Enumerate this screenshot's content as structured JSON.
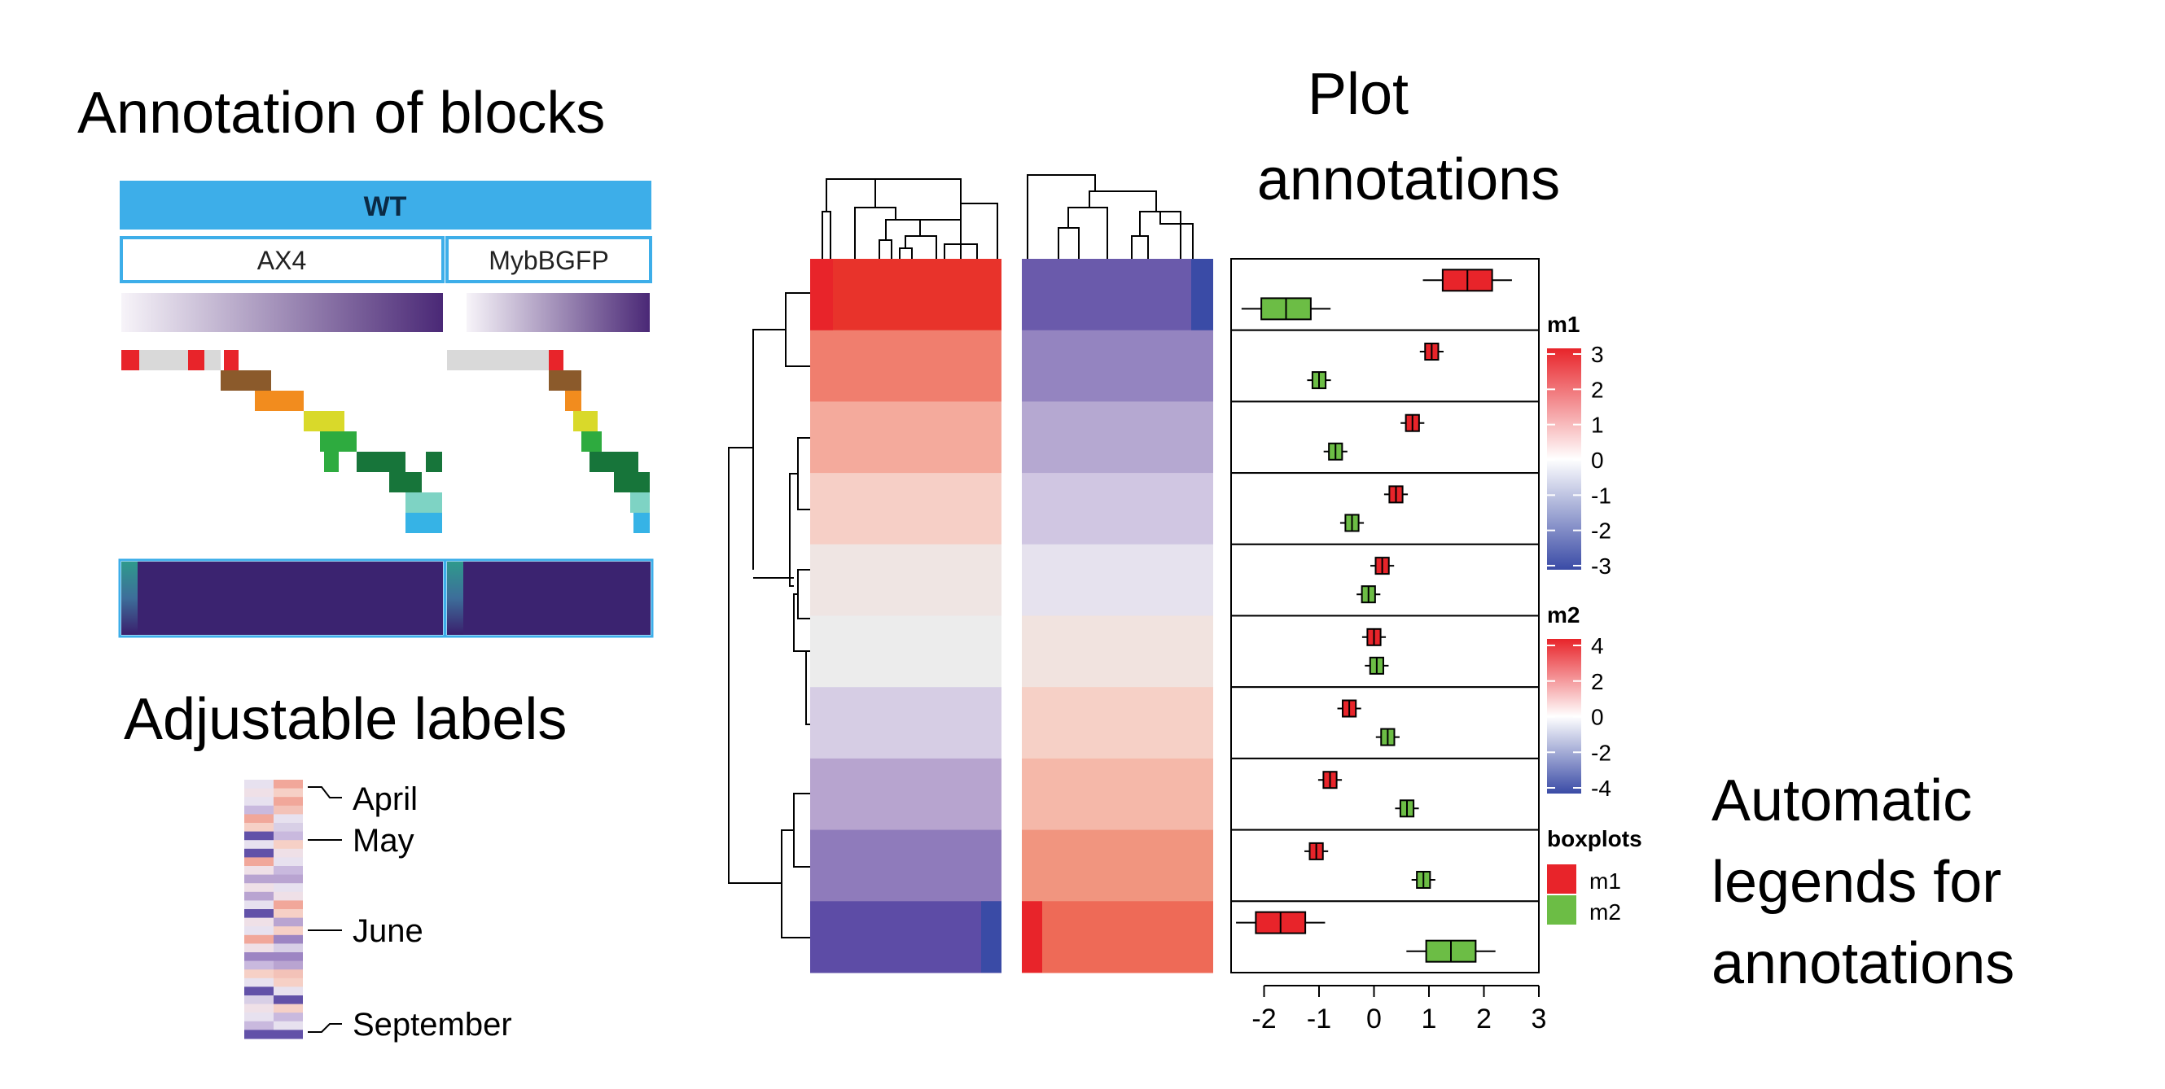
{
  "titles": {
    "annotation_of_blocks": "Annotation of blocks",
    "adjustable_labels": "Adjustable labels",
    "plot_annotations_line1": "Plot",
    "plot_annotations_line2": "annotations",
    "automatic_line1": "Automatic",
    "automatic_line2": "legends for",
    "automatic_line3": "annotations"
  },
  "blocks_panel": {
    "top_label": "WT",
    "groups": [
      "AX4",
      "MybBGFP"
    ],
    "colors": {
      "header": "#3daee9",
      "header_border": "#2196c8",
      "gradient_start": "#f6f2f8",
      "gradient_end": "#4b2a78",
      "viridis_dark": "#3b1f6e",
      "viridis_mid": "#2d5c8a",
      "viridis_teal": "#21a08c"
    },
    "staircase_colors": [
      "#e8242a",
      "#d9d9d9",
      "#8b5a2b",
      "#f28c1e",
      "#d9d92a",
      "#2eab3f",
      "#17753a",
      "#7ed3c4",
      "#36b3e6"
    ]
  },
  "labels_panel": {
    "labels": [
      "April",
      "May",
      "June",
      "September"
    ]
  },
  "heatmap": {
    "left_colors": [
      "#e8332b",
      "#f07e6e",
      "#f4aa9c",
      "#f6cfc6",
      "#efe5e3",
      "#ececec",
      "#d6cde4",
      "#b7a4cf",
      "#8f7bbb",
      "#5d4ca6"
    ],
    "right_colors": [
      "#6a5aab",
      "#9484c0",
      "#b5a8d1",
      "#d0c6e2",
      "#e6e2ee",
      "#f1e3df",
      "#f6d0c6",
      "#f5b8a9",
      "#f1957f",
      "#ee6a57"
    ],
    "accent_left_top": "#e8242a",
    "accent_left_bottom": "#3a4ba6",
    "accent_right_top": "#3a4ba6",
    "accent_right_bottom": "#e8242a"
  },
  "boxplots": {
    "axis_ticks": [
      "-2",
      "-1",
      "0",
      "1",
      "2",
      "3"
    ],
    "rows": [
      {
        "m1": 1.7,
        "m2": -1.6
      },
      {
        "m1": 1.05,
        "m2": -1.0
      },
      {
        "m1": 0.7,
        "m2": -0.7
      },
      {
        "m1": 0.4,
        "m2": -0.4
      },
      {
        "m1": 0.15,
        "m2": -0.1
      },
      {
        "m1": 0.0,
        "m2": 0.05
      },
      {
        "m1": -0.45,
        "m2": 0.25
      },
      {
        "m1": -0.8,
        "m2": 0.6
      },
      {
        "m1": -1.05,
        "m2": 0.9
      },
      {
        "m1": -1.7,
        "m2": 1.4
      }
    ],
    "colors": {
      "m1": "#e8242a",
      "m2": "#6cbd45"
    }
  },
  "legends": {
    "m1": {
      "title": "m1",
      "ticks": [
        "3",
        "2",
        "1",
        "0",
        "-1",
        "-2",
        "-3"
      ]
    },
    "m2": {
      "title": "m2",
      "ticks": [
        "4",
        "2",
        "0",
        "-2",
        "-4"
      ]
    },
    "boxplots": {
      "title": "boxplots",
      "items": [
        "m1",
        "m2"
      ]
    },
    "colors": {
      "high": "#e8242a",
      "mid": "#ffffff",
      "low": "#3a4ba6"
    }
  }
}
